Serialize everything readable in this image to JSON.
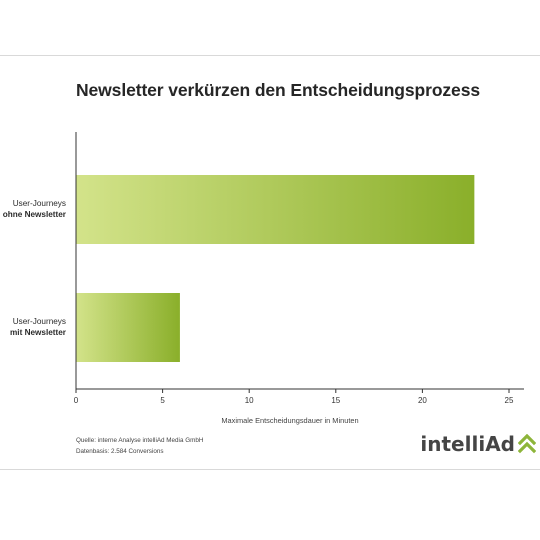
{
  "title": "Newsletter verkürzen den Entscheidungsprozess",
  "chart_data": {
    "type": "bar",
    "orientation": "horizontal",
    "title": "Newsletter verkürzen den Entscheidungsprozess",
    "categories": [
      [
        "User-Journeys",
        "ohne Newsletter"
      ],
      [
        "User-Journeys",
        "mit Newsletter"
      ]
    ],
    "values": [
      23,
      6
    ],
    "xlabel": "Maximale Entscheidungsdauer in Minuten",
    "ylabel": "",
    "xlim": [
      0,
      25
    ],
    "x_ticks": [
      0,
      5,
      10,
      15,
      20,
      25
    ],
    "grid": false,
    "bar_gradient": [
      "#d3e38a",
      "#8aaf2a"
    ]
  },
  "footer": {
    "source": "Quelle: interne Analyse intelliAd Media GmbH",
    "basis": "Datenbasis: 2.584 Conversions"
  },
  "logo": {
    "text": "intelliAd",
    "accent_color": "#8db53a",
    "icon": "double-chevron-up-icon"
  }
}
